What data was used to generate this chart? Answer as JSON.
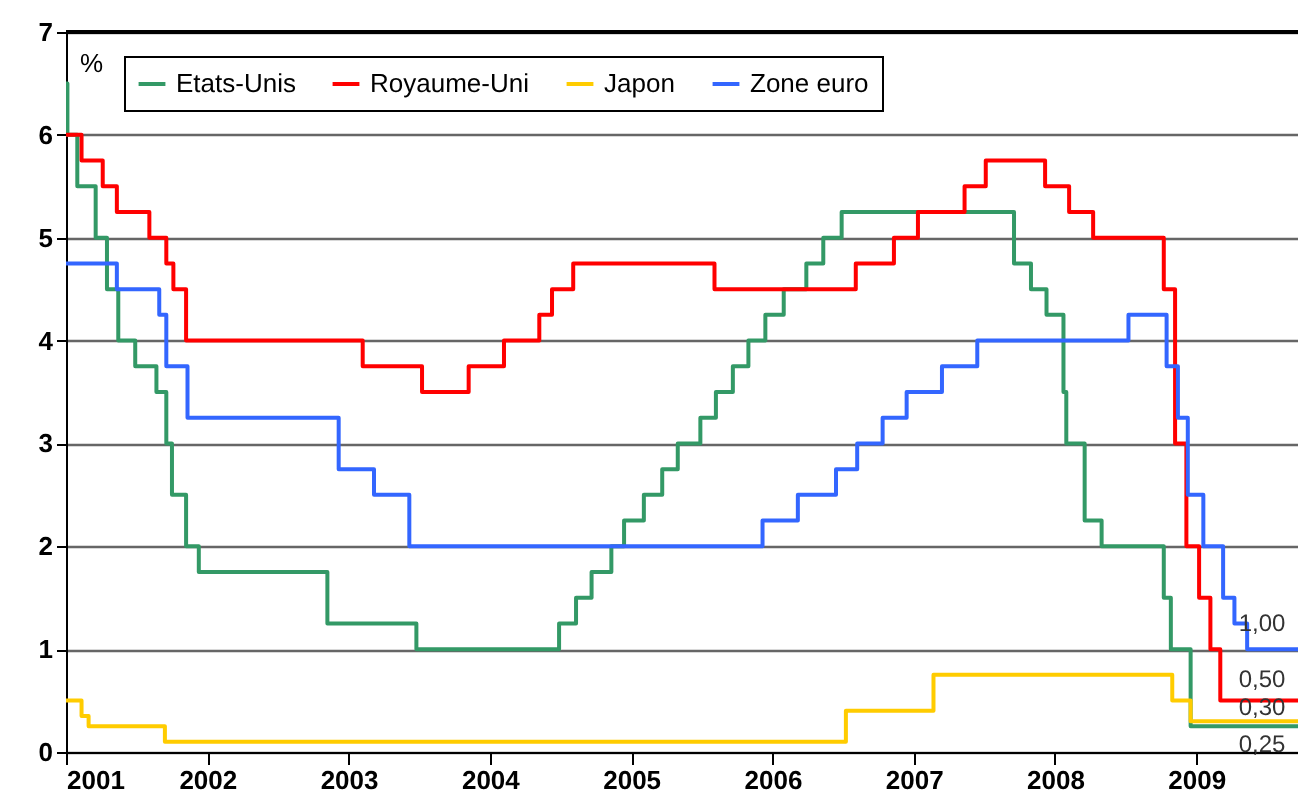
{
  "chart_data": {
    "type": "step",
    "ylabel": "%",
    "xlim": [
      2001,
      2009.72
    ],
    "xticks": [
      2001,
      2002,
      2003,
      2004,
      2005,
      2006,
      2007,
      2008,
      2009
    ],
    "ylim": [
      0,
      7
    ],
    "yticks": [
      0,
      1,
      2,
      3,
      4,
      5,
      6,
      7
    ],
    "grid": "y",
    "legend": "top left",
    "line_style": "solid",
    "marker": "none",
    "series": [
      {
        "name": "Etats-Unis",
        "color": "#339966",
        "x": [
          2001.0,
          2001.01,
          2001.08,
          2001.21,
          2001.29,
          2001.37,
          2001.49,
          2001.64,
          2001.71,
          2001.75,
          2001.85,
          2001.94,
          2002.85,
          2003.48,
          2004.49,
          2004.61,
          2004.72,
          2004.86,
          2004.95,
          2005.09,
          2005.22,
          2005.33,
          2005.49,
          2005.6,
          2005.72,
          2005.83,
          2005.95,
          2006.08,
          2006.24,
          2006.36,
          2006.49,
          2007.71,
          2007.83,
          2007.94,
          2008.06,
          2008.08,
          2008.21,
          2008.33,
          2008.77,
          2008.82,
          2008.96,
          2009.72
        ],
        "values": [
          6.5,
          6.0,
          5.5,
          5.0,
          4.5,
          4.0,
          3.75,
          3.5,
          3.0,
          2.5,
          2.0,
          1.75,
          1.25,
          1.0,
          1.25,
          1.5,
          1.75,
          2.0,
          2.25,
          2.5,
          2.75,
          3.0,
          3.25,
          3.5,
          3.75,
          4.0,
          4.25,
          4.5,
          4.75,
          5.0,
          5.25,
          4.75,
          4.5,
          4.25,
          3.5,
          3.0,
          2.25,
          2.0,
          1.5,
          1.0,
          0.25,
          0.25
        ]
      },
      {
        "name": "Royaume-Uni",
        "color": "#ff0000",
        "x": [
          2001.0,
          2001.11,
          2001.26,
          2001.36,
          2001.59,
          2001.71,
          2001.76,
          2001.85,
          2003.1,
          2003.52,
          2003.85,
          2004.1,
          2004.35,
          2004.44,
          2004.59,
          2005.59,
          2006.59,
          2006.86,
          2007.03,
          2007.36,
          2007.51,
          2007.93,
          2008.1,
          2008.27,
          2008.77,
          2008.85,
          2008.93,
          2009.02,
          2009.1,
          2009.17,
          2009.72
        ],
        "values": [
          6.0,
          5.75,
          5.5,
          5.25,
          5.0,
          4.75,
          4.5,
          4.0,
          3.75,
          3.5,
          3.75,
          4.0,
          4.25,
          4.5,
          4.75,
          4.5,
          4.75,
          5.0,
          5.25,
          5.5,
          5.75,
          5.5,
          5.25,
          5.0,
          4.5,
          3.0,
          2.0,
          1.5,
          1.0,
          0.5,
          0.5
        ]
      },
      {
        "name": "Japon",
        "color": "#ffcc00",
        "x": [
          2001.0,
          2001.11,
          2001.16,
          2001.7,
          2006.52,
          2007.14,
          2008.83,
          2008.96,
          2009.72
        ],
        "values": [
          0.5,
          0.35,
          0.25,
          0.1,
          0.4,
          0.75,
          0.5,
          0.3,
          0.3
        ]
      },
      {
        "name": "Zone euro",
        "color": "#3366ff",
        "x": [
          2001.0,
          2001.36,
          2001.66,
          2001.71,
          2001.86,
          2002.93,
          2003.18,
          2003.43,
          2005.93,
          2006.18,
          2006.45,
          2006.6,
          2006.78,
          2006.95,
          2007.2,
          2007.45,
          2008.52,
          2008.79,
          2008.87,
          2008.94,
          2009.05,
          2009.19,
          2009.27,
          2009.36,
          2009.72
        ],
        "values": [
          4.75,
          4.5,
          4.25,
          3.75,
          3.25,
          2.75,
          2.5,
          2.0,
          2.25,
          2.5,
          2.75,
          3.0,
          3.25,
          3.5,
          3.75,
          4.0,
          4.25,
          3.75,
          3.25,
          2.5,
          2.0,
          1.5,
          1.25,
          1.0,
          1.0
        ]
      }
    ],
    "annotations": [
      {
        "text": "1,00",
        "y": 1.0
      },
      {
        "text": "0,50",
        "y": 0.5
      },
      {
        "text": "0,30",
        "y": 0.3
      },
      {
        "text": "0,25",
        "y": 0.25
      }
    ]
  }
}
